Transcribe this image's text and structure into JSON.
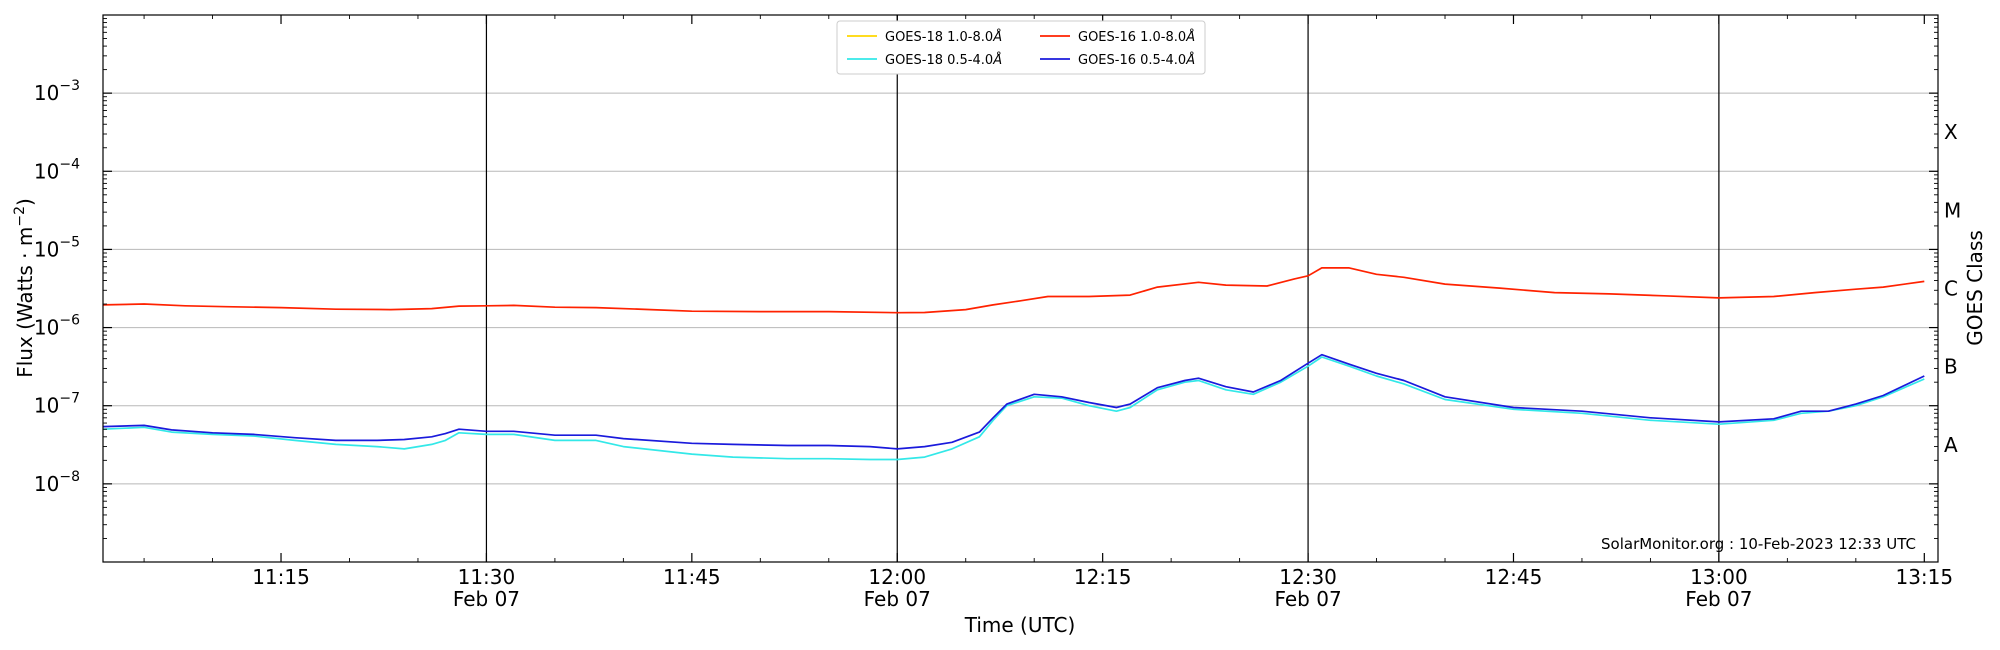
{
  "chart_data": {
    "type": "line",
    "title": "",
    "xlabel": "Time (UTC)",
    "ylabel": "Flux (Watts · m",
    "ylabel_exponent": "−2",
    "ylabel_close": ")",
    "y2label": "GOES Class",
    "yscale": "log",
    "ylim": [
      1e-09,
      0.01
    ],
    "xlim": [
      "11:02",
      "13:16"
    ],
    "grid": {
      "horizontal": true,
      "vertical": false
    },
    "legend_position": "top-center",
    "yticks": [
      {
        "value": 1e-08,
        "base": "10",
        "exp": "−8"
      },
      {
        "value": 1e-07,
        "base": "10",
        "exp": "−7"
      },
      {
        "value": 1e-06,
        "base": "10",
        "exp": "−6"
      },
      {
        "value": 1e-05,
        "base": "10",
        "exp": "−5"
      },
      {
        "value": 0.0001,
        "base": "10",
        "exp": "−4"
      },
      {
        "value": 0.001,
        "base": "10",
        "exp": "−3"
      }
    ],
    "xticks": [
      {
        "time": "11:15",
        "label": "11:15",
        "date": ""
      },
      {
        "time": "11:30",
        "label": "11:30",
        "date": "Feb 07"
      },
      {
        "time": "11:45",
        "label": "11:45",
        "date": ""
      },
      {
        "time": "12:00",
        "label": "12:00",
        "date": "Feb 07"
      },
      {
        "time": "12:15",
        "label": "12:15",
        "date": ""
      },
      {
        "time": "12:30",
        "label": "12:30",
        "date": "Feb 07"
      },
      {
        "time": "12:45",
        "label": "12:45",
        "date": ""
      },
      {
        "time": "13:00",
        "label": "13:00",
        "date": "Feb 07"
      },
      {
        "time": "13:15",
        "label": "13:15",
        "date": ""
      }
    ],
    "vertical_lines": [
      "11:30",
      "12:00",
      "12:30",
      "13:00"
    ],
    "goes_classes": [
      {
        "label": "A",
        "value": 3.16e-08
      },
      {
        "label": "B",
        "value": 3.16e-07
      },
      {
        "label": "C",
        "value": 3.16e-06
      },
      {
        "label": "M",
        "value": 3.16e-05
      },
      {
        "label": "X",
        "value": 0.000316
      }
    ],
    "legend": [
      {
        "label": "GOES-18 1.0-8.0",
        "unit_symbol": "Å",
        "color": "#ffd700"
      },
      {
        "label": "GOES-16 1.0-8.0",
        "unit_symbol": "Å",
        "color": "#ff2200"
      },
      {
        "label": "GOES-18 0.5-4.0",
        "unit_symbol": "Å",
        "color": "#33e8e8"
      },
      {
        "label": "GOES-16 0.5-4.0",
        "unit_symbol": "Å",
        "color": "#1a1adc"
      }
    ],
    "series": [
      {
        "name": "GOES-16 1.0-8.0Å",
        "color": "#ff2200",
        "points": [
          [
            "11:02",
            1.95e-06
          ],
          [
            "11:05",
            2e-06
          ],
          [
            "11:08",
            1.9e-06
          ],
          [
            "11:11",
            1.85e-06
          ],
          [
            "11:15",
            1.8e-06
          ],
          [
            "11:19",
            1.72e-06
          ],
          [
            "11:23",
            1.7e-06
          ],
          [
            "11:26",
            1.75e-06
          ],
          [
            "11:28",
            1.88e-06
          ],
          [
            "11:30",
            1.9e-06
          ],
          [
            "11:32",
            1.92e-06
          ],
          [
            "11:35",
            1.82e-06
          ],
          [
            "11:38",
            1.8e-06
          ],
          [
            "11:42",
            1.7e-06
          ],
          [
            "11:45",
            1.62e-06
          ],
          [
            "11:50",
            1.6e-06
          ],
          [
            "11:55",
            1.6e-06
          ],
          [
            "12:00",
            1.55e-06
          ],
          [
            "12:02",
            1.56e-06
          ],
          [
            "12:05",
            1.7e-06
          ],
          [
            "12:07",
            1.95e-06
          ],
          [
            "12:09",
            2.2e-06
          ],
          [
            "12:11",
            2.5e-06
          ],
          [
            "12:14",
            2.5e-06
          ],
          [
            "12:17",
            2.6e-06
          ],
          [
            "12:19",
            3.3e-06
          ],
          [
            "12:22",
            3.8e-06
          ],
          [
            "12:24",
            3.5e-06
          ],
          [
            "12:27",
            3.4e-06
          ],
          [
            "12:29",
            4.2e-06
          ],
          [
            "12:30",
            4.6e-06
          ],
          [
            "12:31",
            5.8e-06
          ],
          [
            "12:33",
            5.8e-06
          ],
          [
            "12:35",
            4.8e-06
          ],
          [
            "12:37",
            4.4e-06
          ],
          [
            "12:40",
            3.6e-06
          ],
          [
            "12:44",
            3.2e-06
          ],
          [
            "12:48",
            2.8e-06
          ],
          [
            "12:52",
            2.7e-06
          ],
          [
            "12:56",
            2.55e-06
          ],
          [
            "13:00",
            2.4e-06
          ],
          [
            "13:04",
            2.5e-06
          ],
          [
            "13:07",
            2.8e-06
          ],
          [
            "13:10",
            3.1e-06
          ],
          [
            "13:12",
            3.3e-06
          ],
          [
            "13:15",
            3.9e-06
          ]
        ]
      },
      {
        "name": "GOES-18 0.5-4.0Å",
        "color": "#33e8e8",
        "points": [
          [
            "11:02",
            5e-08
          ],
          [
            "11:05",
            5.3e-08
          ],
          [
            "11:07",
            4.6e-08
          ],
          [
            "11:10",
            4.3e-08
          ],
          [
            "11:13",
            4.1e-08
          ],
          [
            "11:16",
            3.6e-08
          ],
          [
            "11:19",
            3.2e-08
          ],
          [
            "11:22",
            3e-08
          ],
          [
            "11:24",
            2.8e-08
          ],
          [
            "11:26",
            3.2e-08
          ],
          [
            "11:27",
            3.6e-08
          ],
          [
            "11:28",
            4.5e-08
          ],
          [
            "11:30",
            4.3e-08
          ],
          [
            "11:32",
            4.3e-08
          ],
          [
            "11:35",
            3.6e-08
          ],
          [
            "11:38",
            3.6e-08
          ],
          [
            "11:40",
            3e-08
          ],
          [
            "11:45",
            2.4e-08
          ],
          [
            "11:48",
            2.2e-08
          ],
          [
            "11:52",
            2.1e-08
          ],
          [
            "11:55",
            2.1e-08
          ],
          [
            "11:58",
            2.05e-08
          ],
          [
            "12:00",
            2.05e-08
          ],
          [
            "12:02",
            2.2e-08
          ],
          [
            "12:04",
            2.8e-08
          ],
          [
            "12:06",
            4e-08
          ],
          [
            "12:07",
            6.5e-08
          ],
          [
            "12:08",
            1e-07
          ],
          [
            "12:10",
            1.3e-07
          ],
          [
            "12:12",
            1.25e-07
          ],
          [
            "12:14",
            1e-07
          ],
          [
            "12:16",
            8.5e-08
          ],
          [
            "12:17",
            9.5e-08
          ],
          [
            "12:19",
            1.6e-07
          ],
          [
            "12:21",
            2e-07
          ],
          [
            "12:22",
            2.1e-07
          ],
          [
            "12:24",
            1.6e-07
          ],
          [
            "12:26",
            1.4e-07
          ],
          [
            "12:28",
            2e-07
          ],
          [
            "12:30",
            3.2e-07
          ],
          [
            "12:31",
            4.2e-07
          ],
          [
            "12:33",
            3.2e-07
          ],
          [
            "12:35",
            2.4e-07
          ],
          [
            "12:37",
            1.9e-07
          ],
          [
            "12:40",
            1.2e-07
          ],
          [
            "12:45",
            9e-08
          ],
          [
            "12:50",
            8e-08
          ],
          [
            "12:55",
            6.5e-08
          ],
          [
            "13:00",
            5.8e-08
          ],
          [
            "13:04",
            6.5e-08
          ],
          [
            "13:06",
            8e-08
          ],
          [
            "13:08",
            8.5e-08
          ],
          [
            "13:10",
            1e-07
          ],
          [
            "13:12",
            1.3e-07
          ],
          [
            "13:15",
            2.2e-07
          ]
        ]
      },
      {
        "name": "GOES-16 0.5-4.0Å",
        "color": "#1a1adc",
        "points": [
          [
            "11:02",
            5.4e-08
          ],
          [
            "11:05",
            5.6e-08
          ],
          [
            "11:07",
            4.9e-08
          ],
          [
            "11:10",
            4.5e-08
          ],
          [
            "11:13",
            4.3e-08
          ],
          [
            "11:16",
            3.9e-08
          ],
          [
            "11:19",
            3.6e-08
          ],
          [
            "11:22",
            3.6e-08
          ],
          [
            "11:24",
            3.7e-08
          ],
          [
            "11:26",
            4e-08
          ],
          [
            "11:27",
            4.4e-08
          ],
          [
            "11:28",
            5e-08
          ],
          [
            "11:30",
            4.7e-08
          ],
          [
            "11:32",
            4.7e-08
          ],
          [
            "11:35",
            4.2e-08
          ],
          [
            "11:38",
            4.2e-08
          ],
          [
            "11:40",
            3.8e-08
          ],
          [
            "11:45",
            3.3e-08
          ],
          [
            "11:48",
            3.2e-08
          ],
          [
            "11:52",
            3.1e-08
          ],
          [
            "11:55",
            3.1e-08
          ],
          [
            "11:58",
            3e-08
          ],
          [
            "12:00",
            2.8e-08
          ],
          [
            "12:02",
            3e-08
          ],
          [
            "12:04",
            3.4e-08
          ],
          [
            "12:06",
            4.6e-08
          ],
          [
            "12:07",
            7e-08
          ],
          [
            "12:08",
            1.05e-07
          ],
          [
            "12:10",
            1.4e-07
          ],
          [
            "12:12",
            1.3e-07
          ],
          [
            "12:14",
            1.1e-07
          ],
          [
            "12:16",
            9.5e-08
          ],
          [
            "12:17",
            1.05e-07
          ],
          [
            "12:19",
            1.7e-07
          ],
          [
            "12:21",
            2.1e-07
          ],
          [
            "12:22",
            2.25e-07
          ],
          [
            "12:24",
            1.75e-07
          ],
          [
            "12:26",
            1.5e-07
          ],
          [
            "12:28",
            2.1e-07
          ],
          [
            "12:30",
            3.5e-07
          ],
          [
            "12:31",
            4.5e-07
          ],
          [
            "12:33",
            3.4e-07
          ],
          [
            "12:35",
            2.6e-07
          ],
          [
            "12:37",
            2.1e-07
          ],
          [
            "12:40",
            1.3e-07
          ],
          [
            "12:45",
            9.5e-08
          ],
          [
            "12:50",
            8.5e-08
          ],
          [
            "12:55",
            7e-08
          ],
          [
            "13:00",
            6.2e-08
          ],
          [
            "13:04",
            6.8e-08
          ],
          [
            "13:06",
            8.5e-08
          ],
          [
            "13:08",
            8.5e-08
          ],
          [
            "13:10",
            1.05e-07
          ],
          [
            "13:12",
            1.35e-07
          ],
          [
            "13:15",
            2.4e-07
          ]
        ]
      }
    ],
    "annotation": "SolarMonitor.org : 10-Feb-2023 12:33 UTC"
  }
}
